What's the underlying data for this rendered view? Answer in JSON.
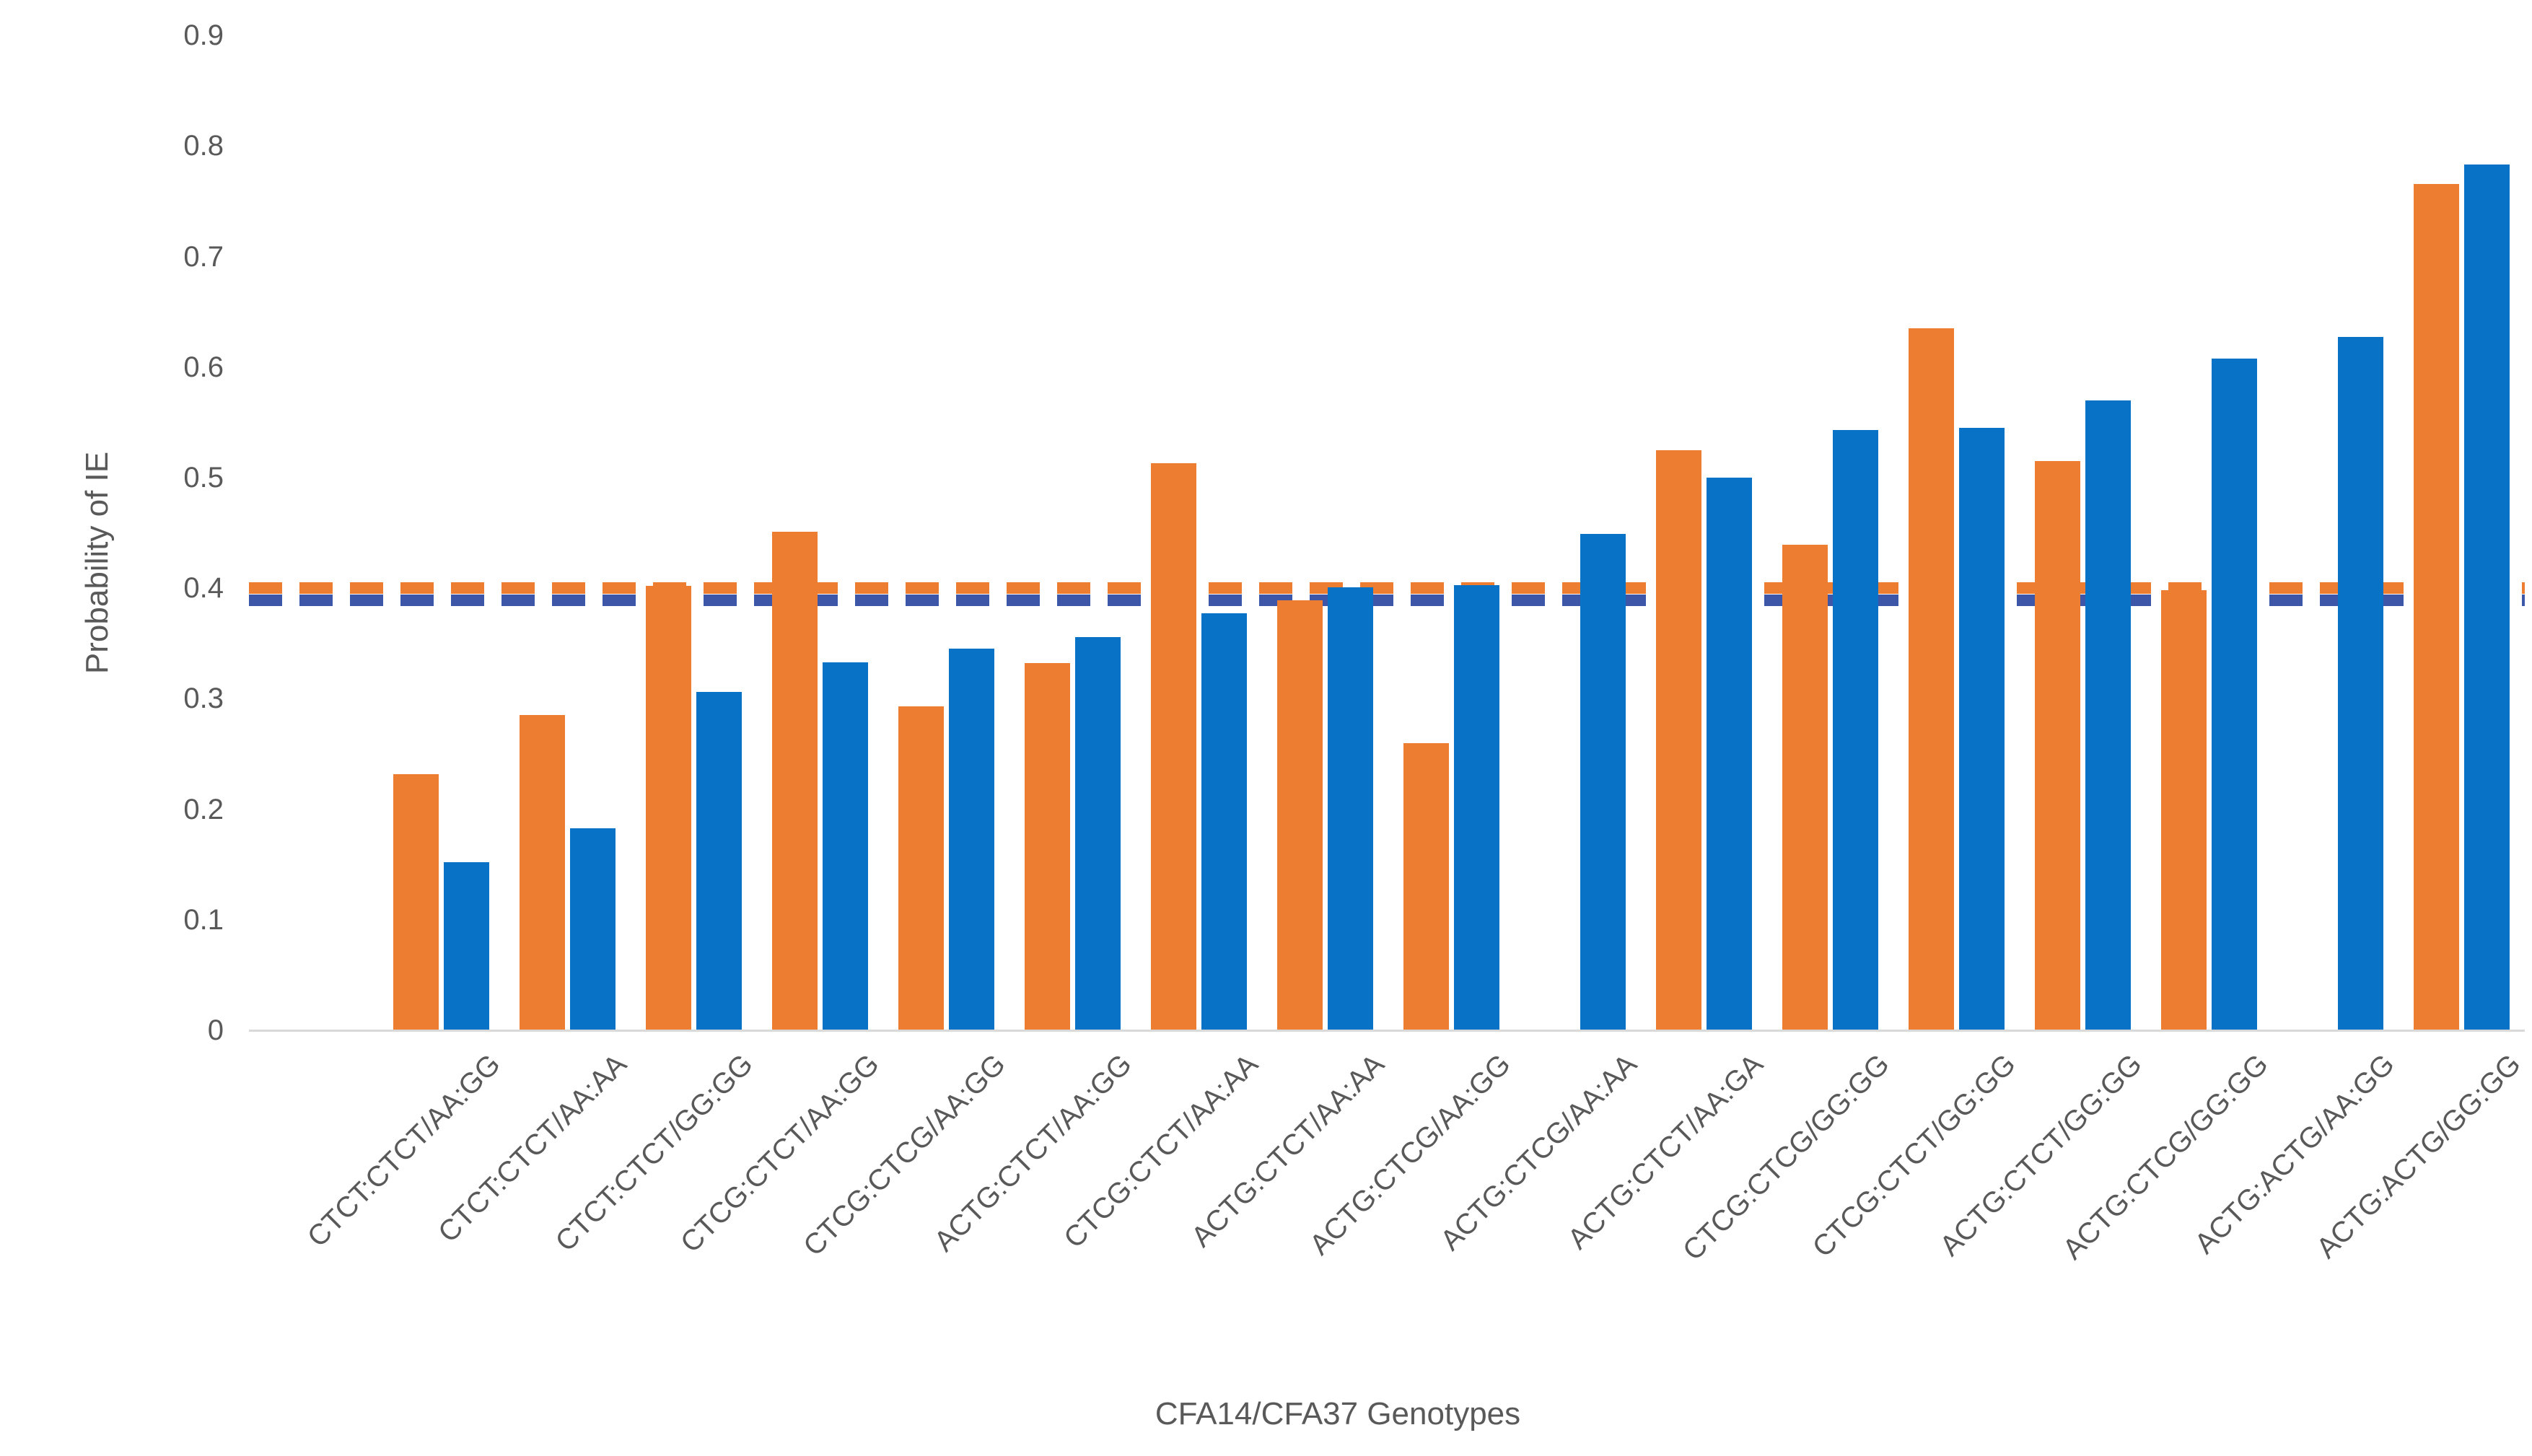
{
  "chart_data": {
    "type": "bar",
    "title": "",
    "xlabel": "CFA14/CFA37 Genotypes",
    "ylabel": "Probability of IE",
    "ylim": [
      0,
      0.9
    ],
    "yticks": [
      0,
      0.1,
      0.2,
      0.3,
      0.4,
      0.5,
      0.6,
      0.7,
      0.8,
      0.9
    ],
    "grid": false,
    "legend_position": "none",
    "categories": [
      "CTCT:CTCT/AA:GG",
      "CTCT:CTCT/AA:AA",
      "CTCT:CTCT/GG:GG",
      "CTCG:CTCT/AA:GG",
      "CTCG:CTCG/AA:GG",
      "ACTG:CTCT/AA:GG",
      "CTCG:CTCT/AA:AA",
      "ACTG:CTCT/AA:AA",
      "ACTG:CTCG/AA:GG",
      "ACTG:CTCG/AA:AA",
      "ACTG:CTCT/AA:GA",
      "CTCG:CTCG/GG:GG",
      "CTCG:CTCT/GG:GG",
      "ACTG:CTCT/GG:GG",
      "ACTG:CTCG/GG:GG",
      "ACTG:ACTG/AA:GG",
      "ACTG:ACTG/GG:GG"
    ],
    "series": [
      {
        "name": "orange-series",
        "color": "#ED7D31",
        "values": [
          0.232,
          0.285,
          0.402,
          0.451,
          0.293,
          0.332,
          0.513,
          0.389,
          0.26,
          null,
          0.525,
          0.439,
          0.635,
          0.515,
          0.398,
          null,
          0.766
        ]
      },
      {
        "name": "blue-series",
        "color": "#0873C6",
        "values": [
          0.152,
          0.183,
          0.306,
          0.333,
          0.345,
          0.356,
          0.377,
          0.401,
          0.403,
          0.449,
          0.5,
          0.543,
          0.545,
          0.57,
          0.608,
          0.627,
          0.783
        ]
      }
    ],
    "reference_lines": [
      {
        "name": "orange-dashed-line",
        "value": 0.4,
        "color": "#ED7D31",
        "style": "dashed"
      },
      {
        "name": "blue-dashed-line",
        "value": 0.389,
        "color": "#3D56A8",
        "style": "dashed"
      }
    ]
  },
  "axis_text_color": "#595959",
  "baseline_color": "#D9D9D9"
}
